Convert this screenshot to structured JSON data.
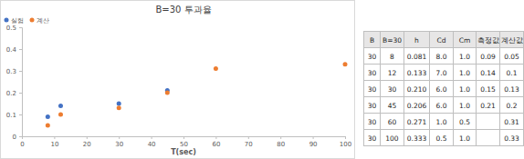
{
  "chart_data": {
    "type": "scatter",
    "title": "B=30 투과율",
    "x_label": "T(sec)",
    "series": [
      {
        "name": "실험",
        "color": "#4472c4",
        "marker": "circle",
        "x": [
          8,
          12,
          30,
          45
        ],
        "values": [
          0.09,
          0.14,
          0.15,
          0.21
        ]
      },
      {
        "name": "계산",
        "color": "#ed7d31",
        "marker": "circle",
        "x": [
          8,
          12,
          30,
          45,
          60,
          100
        ],
        "values": [
          0.05,
          0.1,
          0.13,
          0.2,
          0.31,
          0.33
        ]
      }
    ],
    "xlim": [
      0,
      100
    ],
    "xticks": [
      0,
      10,
      20,
      30,
      40,
      50,
      60,
      70,
      80,
      90,
      100
    ],
    "ylim": [
      0,
      0.5
    ],
    "yticks": [
      0,
      0.1,
      0.2,
      0.3,
      0.4,
      0.5
    ],
    "grid": false,
    "legend": "top-left"
  },
  "table": {
    "header": [
      "B",
      "B=30",
      "h",
      "Cd",
      "Cm",
      "측정값",
      "계산값"
    ],
    "rows": [
      [
        "30",
        "8",
        "0.081",
        "8.0",
        "1.0",
        "0.09",
        "0.05"
      ],
      [
        "30",
        "12",
        "0.133",
        "7.0",
        "1.0",
        "0.14",
        "0.1"
      ],
      [
        "30",
        "30",
        "0.210",
        "6.0",
        "1.0",
        "0.15",
        "0.13"
      ],
      [
        "30",
        "45",
        "0.206",
        "6.0",
        "1.0",
        "0.21",
        "0.2"
      ],
      [
        "30",
        "60",
        "0.271",
        "1.0",
        "0.5",
        null,
        "0.31"
      ],
      [
        "30",
        "100",
        "0.333",
        "0.5",
        "1.0",
        null,
        "0.33"
      ]
    ]
  }
}
